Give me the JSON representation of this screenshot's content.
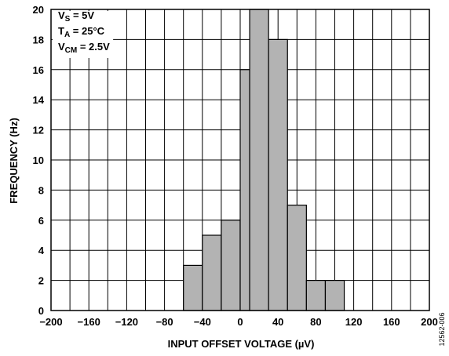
{
  "chart_data": {
    "type": "bar",
    "xlabel": "INPUT OFFSET VOLTAGE (µV)",
    "ylabel": "FREQUENCY (Hz)",
    "xlim": [
      -200,
      200
    ],
    "ylim": [
      0,
      20
    ],
    "x_ticks": [
      -200,
      -160,
      -120,
      -80,
      -40,
      0,
      40,
      80,
      120,
      160,
      200
    ],
    "x_tick_labels": [
      "−200",
      "−160",
      "−120",
      "−80",
      "−40",
      "0",
      "40",
      "80",
      "120",
      "160",
      "200"
    ],
    "y_ticks": [
      0,
      2,
      4,
      6,
      8,
      10,
      12,
      14,
      16,
      18,
      20
    ],
    "y_tick_labels": [
      "0",
      "2",
      "4",
      "6",
      "8",
      "10",
      "12",
      "14",
      "16",
      "18",
      "20"
    ],
    "grid": true,
    "bar_color": "#b3b3b3",
    "bar_edge_color": "#000000",
    "bins": [
      {
        "start": -70,
        "end": -60,
        "value": 0
      },
      {
        "start": -60,
        "end": -40,
        "value": 3
      },
      {
        "start": -40,
        "end": -20,
        "value": 5
      },
      {
        "start": -20,
        "end": 0,
        "value": 6
      },
      {
        "start": 0,
        "end": 10,
        "value": 16
      },
      {
        "start": 10,
        "end": 30,
        "value": 20
      },
      {
        "start": 30,
        "end": 50,
        "value": 18
      },
      {
        "start": 50,
        "end": 70,
        "value": 7
      },
      {
        "start": 70,
        "end": 90,
        "value": 2
      },
      {
        "start": 90,
        "end": 110,
        "value": 2
      }
    ],
    "annotations": [
      {
        "main": "V",
        "sub": "S",
        "rest": " = 5V"
      },
      {
        "main": "T",
        "sub": "A",
        "rest": " = 25°C"
      },
      {
        "main": "V",
        "sub": "CM",
        "rest": " = 2.5V"
      }
    ],
    "figure_id": "12562-006"
  }
}
